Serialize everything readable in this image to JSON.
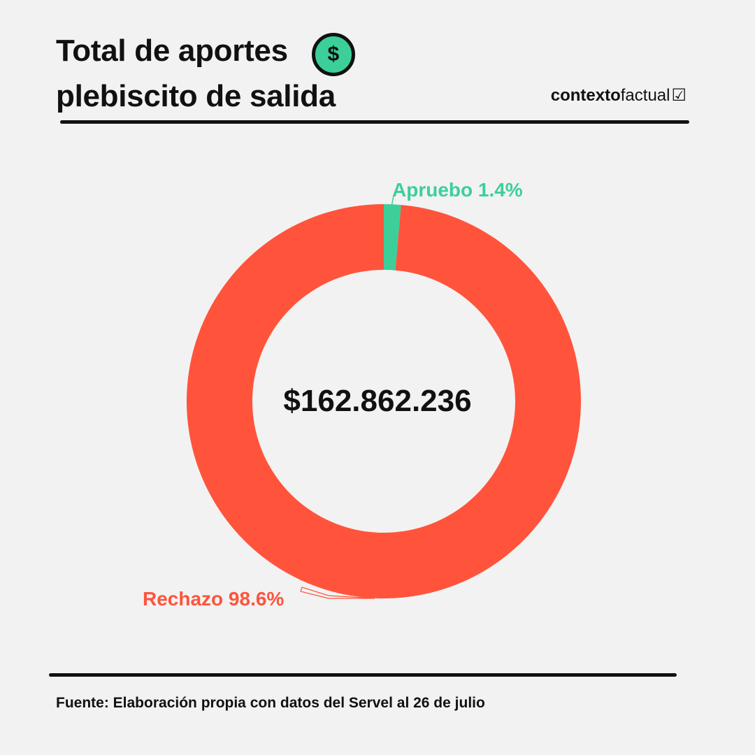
{
  "header": {
    "title_line1": "Total de aportes",
    "title_line2": "plebiscito de salida",
    "title_icon": "dollar-icon",
    "title_icon_glyph": "$"
  },
  "brand": {
    "part1": "contexto",
    "part2": "factual",
    "check_glyph": "☑"
  },
  "chart_data": {
    "type": "pie",
    "donut": true,
    "center_label": "$162.862.236",
    "slices": [
      {
        "label": "Apruebo 1.4%",
        "value": 1.4,
        "color": "#3ccf99"
      },
      {
        "label": "Rechazo 98.6%",
        "value": 98.6,
        "color": "#ff543b"
      }
    ]
  },
  "footer": {
    "source": "Fuente: Elaboración propia con datos del Servel al 26 de julio"
  }
}
